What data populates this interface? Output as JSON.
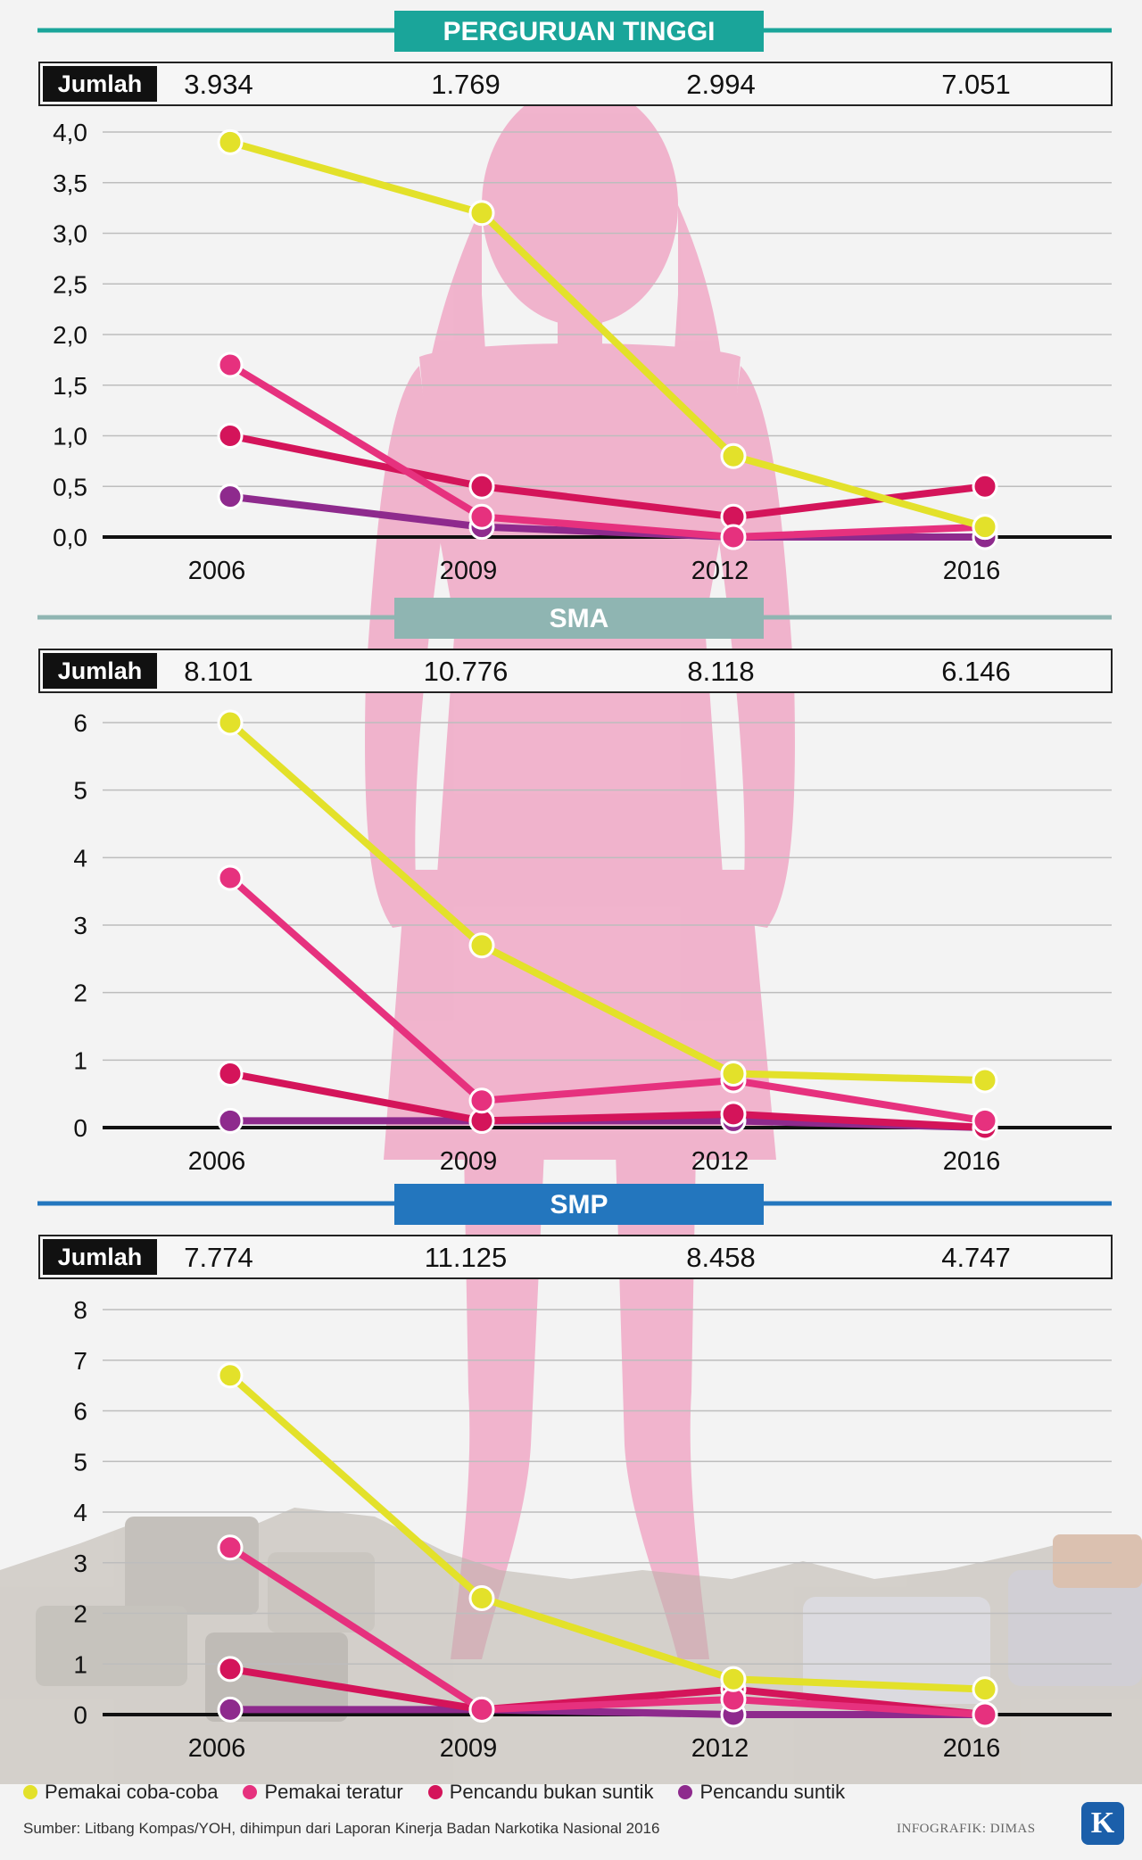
{
  "years": [
    "2006",
    "2009",
    "2012",
    "2016"
  ],
  "jumlah_label": "Jumlah",
  "legend": [
    {
      "name": "Pemakai coba-coba",
      "color": "#e3e12a"
    },
    {
      "name": "Pemakai teratur",
      "color": "#e6317e"
    },
    {
      "name": "Pencandu bukan suntik",
      "color": "#d4145a"
    },
    {
      "name": "Pencandu suntik",
      "color": "#8e2a8d"
    }
  ],
  "panel_colors": {
    "PERGURUAN TINGGI": "#1aa59a",
    "SMA": "#8fb5b2",
    "SMP": "#2376be"
  },
  "chart_data": [
    {
      "type": "line",
      "title": "PERGURUAN TINGGI",
      "jumlah": [
        "3.934",
        "1.769",
        "2.994",
        "7.051"
      ],
      "categories": [
        "2006",
        "2009",
        "2012",
        "2016"
      ],
      "ylim": [
        0,
        4
      ],
      "yticks": [
        "0,0",
        "0,5",
        "1,0",
        "1,5",
        "2,0",
        "2,5",
        "3,0",
        "3,5",
        "4,0"
      ],
      "series": [
        {
          "name": "Pemakai coba-coba",
          "values": [
            3.9,
            3.2,
            0.8,
            0.1
          ]
        },
        {
          "name": "Pemakai teratur",
          "values": [
            1.7,
            0.2,
            0.0,
            0.1
          ]
        },
        {
          "name": "Pencandu bukan suntik",
          "values": [
            1.0,
            0.5,
            0.2,
            0.5
          ]
        },
        {
          "name": "Pencandu suntik",
          "values": [
            0.4,
            0.1,
            0.0,
            0.0
          ]
        }
      ]
    },
    {
      "type": "line",
      "title": "SMA",
      "jumlah": [
        "8.101",
        "10.776",
        "8.118",
        "6.146"
      ],
      "categories": [
        "2006",
        "2009",
        "2012",
        "2016"
      ],
      "ylim": [
        0,
        6
      ],
      "yticks": [
        "0",
        "1",
        "2",
        "3",
        "4",
        "5",
        "6"
      ],
      "series": [
        {
          "name": "Pemakai coba-coba",
          "values": [
            6.0,
            2.7,
            0.8,
            0.7
          ]
        },
        {
          "name": "Pemakai teratur",
          "values": [
            3.7,
            0.4,
            0.7,
            0.1
          ]
        },
        {
          "name": "Pencandu bukan suntik",
          "values": [
            0.8,
            0.1,
            0.2,
            0.0
          ]
        },
        {
          "name": "Pencandu suntik",
          "values": [
            0.1,
            0.1,
            0.1,
            0.0
          ]
        }
      ]
    },
    {
      "type": "line",
      "title": "SMP",
      "jumlah": [
        "7.774",
        "11.125",
        "8.458",
        "4.747"
      ],
      "categories": [
        "2006",
        "2009",
        "2012",
        "2016"
      ],
      "ylim": [
        0,
        8
      ],
      "yticks": [
        "0",
        "1",
        "2",
        "3",
        "4",
        "5",
        "6",
        "7",
        "8"
      ],
      "series": [
        {
          "name": "Pemakai coba-coba",
          "values": [
            6.7,
            2.3,
            0.7,
            0.5
          ]
        },
        {
          "name": "Pemakai teratur",
          "values": [
            3.3,
            0.1,
            0.3,
            0.0
          ]
        },
        {
          "name": "Pencandu bukan suntik",
          "values": [
            0.9,
            0.1,
            0.5,
            0.0
          ]
        },
        {
          "name": "Pencandu suntik",
          "values": [
            0.1,
            0.1,
            0.0,
            0.0
          ]
        }
      ]
    }
  ],
  "footer": {
    "source": "Sumber: Litbang Kompas/YOH, dihimpun dari Laporan Kinerja Badan Narkotika Nasional 2016",
    "credit": "INFOGRAFIK: DIMAS",
    "logo": "K"
  }
}
